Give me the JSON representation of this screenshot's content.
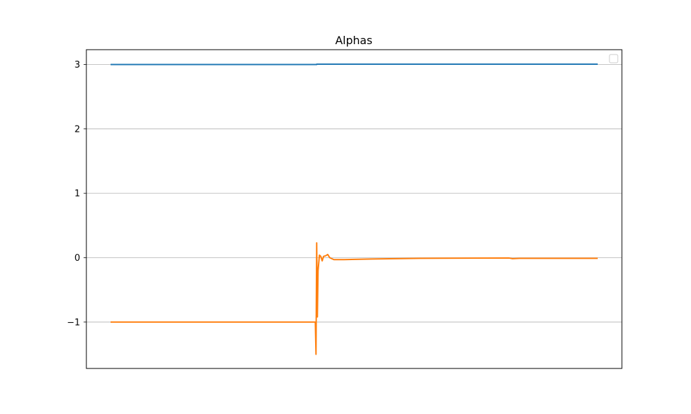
{
  "chart_data": {
    "type": "line",
    "title": "Alphas",
    "xlabel": "",
    "ylabel": "",
    "x_ticks_visible": false,
    "ylim": [
      -1.72,
      3.23
    ],
    "y_ticks": [
      3,
      2,
      1,
      0,
      -1
    ],
    "y_tick_labels": [
      "3",
      "2",
      "1",
      "0",
      "−1"
    ],
    "grid": "y",
    "legend": "top-right",
    "legend_entries": [],
    "series": [
      {
        "color": "#1f77b4",
        "points": [
          [
            0,
            3.0
          ],
          [
            300,
            3.0
          ],
          [
            300,
            3.005
          ],
          [
            709,
            3.005
          ]
        ]
      },
      {
        "color": "#ff7f0e",
        "points": [
          [
            0,
            -1.0
          ],
          [
            298,
            -1.0
          ],
          [
            299,
            -1.5
          ],
          [
            300,
            0.23
          ],
          [
            301,
            -0.92
          ],
          [
            302,
            -0.2
          ],
          [
            304,
            0.04
          ],
          [
            306,
            0.02
          ],
          [
            308,
            -0.05
          ],
          [
            310,
            0.02
          ],
          [
            313,
            0.03
          ],
          [
            316,
            0.05
          ],
          [
            319,
            0.0
          ],
          [
            325,
            -0.03
          ],
          [
            340,
            -0.03
          ],
          [
            380,
            -0.02
          ],
          [
            450,
            -0.01
          ],
          [
            580,
            -0.005
          ],
          [
            585,
            -0.015
          ],
          [
            595,
            -0.01
          ],
          [
            709,
            -0.01
          ]
        ]
      }
    ]
  }
}
